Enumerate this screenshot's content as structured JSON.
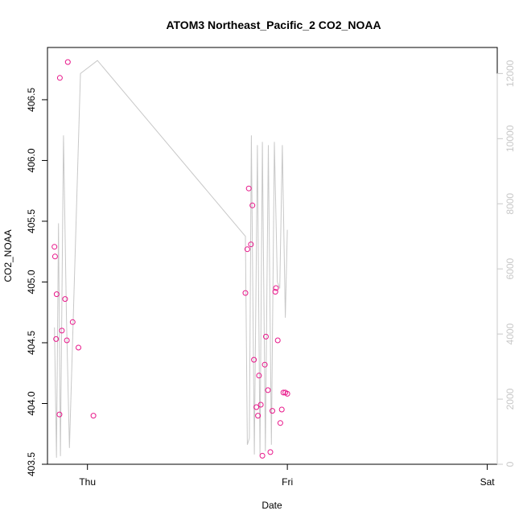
{
  "chart_data": {
    "type": "scatter",
    "title": "ATOM3 Northeast_Pacific_2 CO2_NOAA",
    "xlabel": "Date",
    "ylabel": "CO2_NOAA",
    "x_axis": {
      "type": "date",
      "ticks": [
        {
          "x": 0.0,
          "label": "Thu"
        },
        {
          "x": 1.0,
          "label": "Fri"
        },
        {
          "x": 2.0,
          "label": "Sat"
        }
      ],
      "xlim": [
        -0.2,
        2.05
      ]
    },
    "y_axis_left": {
      "ylim": [
        403.5,
        406.93
      ],
      "ticks": [
        403.5,
        404.0,
        404.5,
        405.0,
        405.5,
        406.0,
        406.5
      ],
      "tick_labels": [
        "403.5",
        "404.0",
        "404.5",
        "405.0",
        "405.5",
        "406.0",
        "406.5"
      ]
    },
    "y_axis_right": {
      "ylim": [
        0,
        12800
      ],
      "ticks": [
        0,
        2000,
        4000,
        6000,
        8000,
        10000,
        12000
      ],
      "tick_labels": [
        "0",
        "2000",
        "4000",
        "6000",
        "8000",
        "10000",
        "12000"
      ],
      "color": "#c8c8c8"
    },
    "series": [
      {
        "kind": "points",
        "axis": "left",
        "color": "#e8178a",
        "marker": "open-circle",
        "x": [
          -0.165,
          -0.162,
          -0.157,
          -0.154,
          -0.138,
          -0.14,
          -0.128,
          -0.112,
          -0.103,
          -0.098,
          -0.074,
          -0.045,
          0.03,
          0.79,
          0.8,
          0.807,
          0.818,
          0.825,
          0.833,
          0.845,
          0.853,
          0.858,
          0.867,
          0.875,
          0.887,
          0.893,
          0.903,
          0.915,
          0.925,
          0.94,
          0.943,
          0.952,
          0.965,
          0.972,
          0.98,
          0.99,
          1.0
        ],
        "y": [
          405.29,
          405.21,
          404.53,
          404.9,
          406.68,
          403.91,
          404.6,
          404.86,
          404.52,
          406.81,
          404.67,
          404.46,
          403.9,
          404.91,
          405.27,
          405.77,
          405.31,
          405.63,
          404.36,
          403.97,
          403.9,
          404.23,
          403.99,
          403.57,
          404.32,
          404.55,
          404.11,
          403.6,
          403.94,
          404.92,
          404.95,
          404.52,
          403.84,
          403.95,
          404.09,
          404.09,
          404.08
        ]
      },
      {
        "kind": "line",
        "axis": "right",
        "name": "",
        "color": "#c8c8c8",
        "x": [
          -0.165,
          -0.155,
          -0.145,
          -0.135,
          -0.12,
          -0.105,
          -0.09,
          -0.035,
          0.05,
          0.79,
          0.8,
          0.81,
          0.82,
          0.835,
          0.85,
          0.863,
          0.875,
          0.89,
          0.905,
          0.92,
          0.935,
          0.95,
          0.962,
          0.975,
          0.99,
          1.0
        ],
        "y": [
          4200,
          200,
          7400,
          250,
          10100,
          4500,
          500,
          12000,
          12400,
          7000,
          600,
          800,
          10100,
          300,
          9800,
          300,
          9900,
          400,
          9800,
          600,
          9900,
          5600,
          5400,
          9800,
          4500,
          7200
        ]
      }
    ],
    "grid": false,
    "legend": "none"
  }
}
